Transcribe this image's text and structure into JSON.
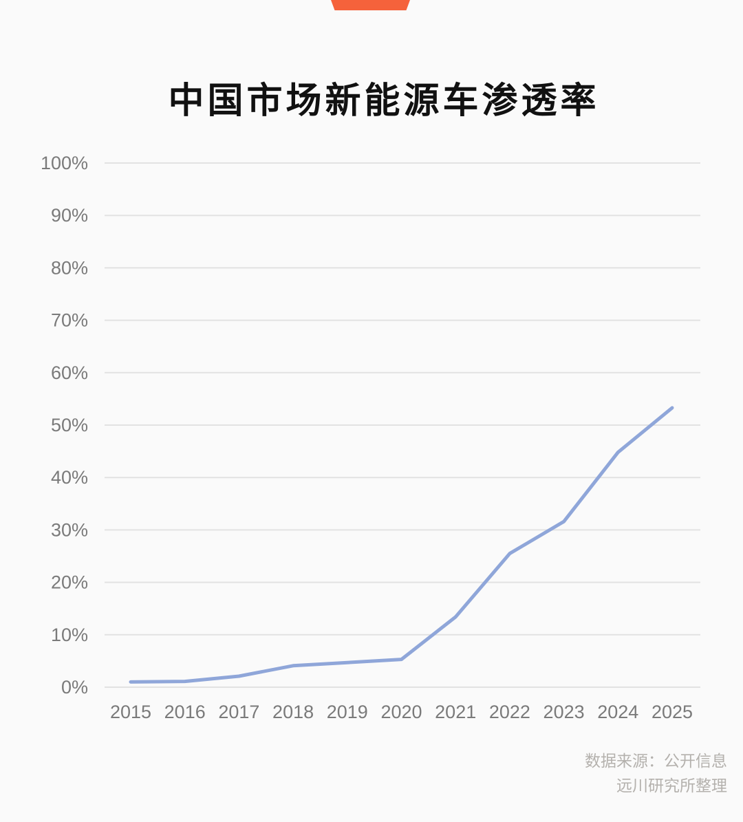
{
  "page": {
    "background": "#fafafa",
    "logo": {
      "shape": "orange-trapezoid-banner",
      "color": "#f5623b"
    },
    "title": "中国市场新能源车渗透率",
    "source": {
      "line1": "数据来源：公开信息",
      "line2": "远川研究所整理"
    }
  },
  "chart_data": {
    "type": "line",
    "title": "中国市场新能源车渗透率",
    "categories": [
      "2015",
      "2016",
      "2017",
      "2018",
      "2019",
      "2020",
      "2021",
      "2022",
      "2023",
      "2024",
      "2025"
    ],
    "series": [
      {
        "name": "新能源车渗透率",
        "values": [
          1.0,
          1.1,
          2.1,
          4.1,
          4.7,
          5.3,
          13.4,
          25.5,
          31.6,
          44.8,
          53.3
        ]
      }
    ],
    "xlabel": "",
    "ylabel": "",
    "ylim": [
      0,
      100
    ],
    "ytick_step": 10,
    "ytick_labels": [
      "0%",
      "10%",
      "20%",
      "30%",
      "40%",
      "50%",
      "60%",
      "70%",
      "80%",
      "90%",
      "100%"
    ],
    "grid": "horizontal",
    "legend": "none",
    "colors": {
      "line": "#8fa6d9",
      "grid": "#e2e2e2",
      "tick_labels": "#7a7a7a"
    }
  }
}
